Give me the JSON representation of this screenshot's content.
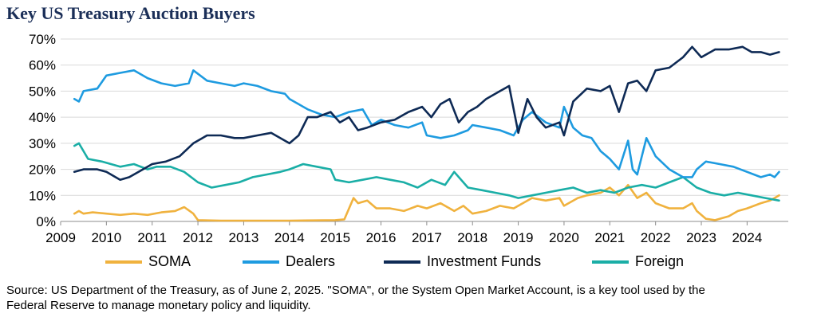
{
  "title": "Key US Treasury Auction Buyers",
  "source_line_1": "Source: US Department of the Treasury, as of June 2, 2025. \"SOMA\", or the System Open Market Account, is a key tool used by the",
  "source_line_2": "Federal Reserve to manage monetary policy and liquidity.",
  "colors": {
    "soma": "#f0b23e",
    "dealers": "#1e9be0",
    "investment_funds": "#0e2a55",
    "foreign": "#1aaea6",
    "grid": "#d9d9d9",
    "axis": "#8c8c8c"
  },
  "chart_data": {
    "type": "line",
    "title": "Key US Treasury Auction Buyers",
    "xlabel": "",
    "ylabel": "",
    "xlim": [
      2009,
      2024.9
    ],
    "ylim": [
      0,
      70
    ],
    "y_ticks": [
      "0%",
      "10%",
      "20%",
      "30%",
      "40%",
      "50%",
      "60%",
      "70%"
    ],
    "y_tick_values": [
      0,
      10,
      20,
      30,
      40,
      50,
      60,
      70
    ],
    "x_ticks": [
      "2009",
      "2010",
      "2011",
      "2012",
      "2013",
      "2014",
      "2015",
      "2016",
      "2017",
      "2018",
      "2019",
      "2020",
      "2021",
      "2022",
      "2023",
      "2024"
    ],
    "grid": "horizontal",
    "legend_position": "bottom",
    "series": [
      {
        "name": "SOMA",
        "color": "#f0b23e",
        "x": [
          2009.3,
          2009.4,
          2009.5,
          2009.7,
          2010.0,
          2010.3,
          2010.6,
          2010.9,
          2011.2,
          2011.5,
          2011.7,
          2011.9,
          2012.0,
          2012.5,
          2013.0,
          2014.0,
          2015.0,
          2015.2,
          2015.4,
          2015.5,
          2015.7,
          2015.9,
          2016.2,
          2016.5,
          2016.8,
          2017.0,
          2017.3,
          2017.6,
          2017.8,
          2018.0,
          2018.3,
          2018.6,
          2018.9,
          2019.1,
          2019.3,
          2019.6,
          2019.9,
          2020.0,
          2020.3,
          2020.5,
          2020.8,
          2021.0,
          2021.2,
          2021.4,
          2021.6,
          2021.8,
          2022.0,
          2022.3,
          2022.6,
          2022.8,
          2022.9,
          2023.1,
          2023.3,
          2023.6,
          2023.8,
          2024.0,
          2024.3,
          2024.5,
          2024.6,
          2024.7
        ],
        "y": [
          3,
          4,
          3,
          3.5,
          3,
          2.5,
          3,
          2.5,
          3.5,
          4,
          5.5,
          3,
          0.5,
          0.3,
          0.3,
          0.3,
          0.5,
          0.8,
          9,
          7,
          8,
          5,
          5,
          4,
          6,
          5,
          7,
          4,
          6,
          3,
          4,
          6,
          5,
          7,
          9,
          8,
          9,
          6,
          9,
          10,
          11,
          13,
          10,
          14,
          9,
          11,
          7,
          5,
          5,
          7,
          4,
          1,
          0.5,
          2,
          4,
          5,
          7,
          8,
          9,
          10
        ]
      },
      {
        "name": "Dealers",
        "color": "#1e9be0",
        "x": [
          2009.3,
          2009.4,
          2009.5,
          2009.8,
          2010.0,
          2010.3,
          2010.6,
          2010.9,
          2011.2,
          2011.5,
          2011.8,
          2011.9,
          2012.2,
          2012.5,
          2012.8,
          2013.0,
          2013.3,
          2013.6,
          2013.9,
          2014.0,
          2014.2,
          2014.4,
          2014.7,
          2015.0,
          2015.3,
          2015.6,
          2015.8,
          2016.0,
          2016.3,
          2016.6,
          2016.9,
          2017.0,
          2017.3,
          2017.6,
          2017.9,
          2018.0,
          2018.3,
          2018.6,
          2018.9,
          2019.1,
          2019.3,
          2019.6,
          2019.9,
          2020.0,
          2020.2,
          2020.4,
          2020.6,
          2020.8,
          2021.0,
          2021.2,
          2021.4,
          2021.5,
          2021.6,
          2021.8,
          2022.0,
          2022.3,
          2022.6,
          2022.8,
          2022.9,
          2023.1,
          2023.4,
          2023.7,
          2024.0,
          2024.3,
          2024.5,
          2024.6,
          2024.7
        ],
        "y": [
          47,
          46,
          50,
          51,
          56,
          57,
          58,
          55,
          53,
          52,
          53,
          58,
          54,
          53,
          52,
          53,
          52,
          50,
          49,
          47,
          45,
          43,
          41,
          40,
          42,
          43,
          37,
          39,
          37,
          36,
          38,
          33,
          32,
          33,
          35,
          37,
          36,
          35,
          33,
          39,
          42,
          38,
          36,
          44,
          36,
          33,
          32,
          27,
          24,
          20,
          31,
          20,
          18,
          32,
          25,
          20,
          17,
          17,
          20,
          23,
          22,
          21,
          19,
          17,
          18,
          17,
          19
        ]
      },
      {
        "name": "Investment Funds",
        "color": "#0e2a55",
        "x": [
          2009.3,
          2009.5,
          2009.8,
          2010.0,
          2010.3,
          2010.5,
          2010.8,
          2011.0,
          2011.3,
          2011.6,
          2011.9,
          2012.2,
          2012.5,
          2012.8,
          2013.0,
          2013.3,
          2013.6,
          2013.9,
          2014.0,
          2014.2,
          2014.4,
          2014.6,
          2014.9,
          2015.1,
          2015.3,
          2015.5,
          2015.7,
          2016.0,
          2016.3,
          2016.6,
          2016.9,
          2017.1,
          2017.3,
          2017.5,
          2017.7,
          2017.9,
          2018.1,
          2018.3,
          2018.6,
          2018.8,
          2019.0,
          2019.2,
          2019.4,
          2019.6,
          2019.9,
          2020.0,
          2020.2,
          2020.5,
          2020.8,
          2021.0,
          2021.2,
          2021.4,
          2021.6,
          2021.8,
          2022.0,
          2022.3,
          2022.6,
          2022.8,
          2023.0,
          2023.3,
          2023.6,
          2023.9,
          2024.1,
          2024.3,
          2024.5,
          2024.7
        ],
        "y": [
          19,
          20,
          20,
          19,
          16,
          17,
          20,
          22,
          23,
          25,
          30,
          33,
          33,
          32,
          32,
          33,
          34,
          31,
          30,
          33,
          40,
          40,
          42,
          38,
          40,
          35,
          36,
          38,
          39,
          42,
          44,
          40,
          45,
          47,
          38,
          42,
          44,
          47,
          50,
          52,
          34,
          47,
          40,
          36,
          38,
          33,
          46,
          51,
          50,
          52,
          42,
          53,
          54,
          50,
          58,
          59,
          63,
          67,
          63,
          66,
          66,
          67,
          65,
          65,
          64,
          65
        ]
      },
      {
        "name": "Foreign",
        "color": "#1aaea6",
        "x": [
          2009.3,
          2009.4,
          2009.6,
          2009.9,
          2010.1,
          2010.3,
          2010.6,
          2010.9,
          2011.1,
          2011.4,
          2011.7,
          2012.0,
          2012.3,
          2012.6,
          2012.9,
          2013.2,
          2013.5,
          2013.8,
          2014.0,
          2014.3,
          2014.6,
          2014.9,
          2015.0,
          2015.3,
          2015.6,
          2015.9,
          2016.2,
          2016.5,
          2016.8,
          2017.1,
          2017.4,
          2017.6,
          2017.9,
          2018.2,
          2018.5,
          2018.8,
          2019.0,
          2019.3,
          2019.6,
          2019.9,
          2020.2,
          2020.5,
          2020.8,
          2021.1,
          2021.4,
          2021.7,
          2022.0,
          2022.3,
          2022.6,
          2022.9,
          2023.2,
          2023.5,
          2023.8,
          2024.1,
          2024.4,
          2024.7
        ],
        "y": [
          29,
          30,
          24,
          23,
          22,
          21,
          22,
          20,
          21,
          21,
          19,
          15,
          13,
          14,
          15,
          17,
          18,
          19,
          20,
          22,
          21,
          20,
          16,
          15,
          16,
          17,
          16,
          15,
          13,
          16,
          14,
          19,
          13,
          12,
          11,
          10,
          9,
          10,
          11,
          12,
          13,
          11,
          12,
          11,
          13,
          14,
          13,
          15,
          17,
          13,
          11,
          10,
          11,
          10,
          9,
          8
        ]
      }
    ]
  }
}
